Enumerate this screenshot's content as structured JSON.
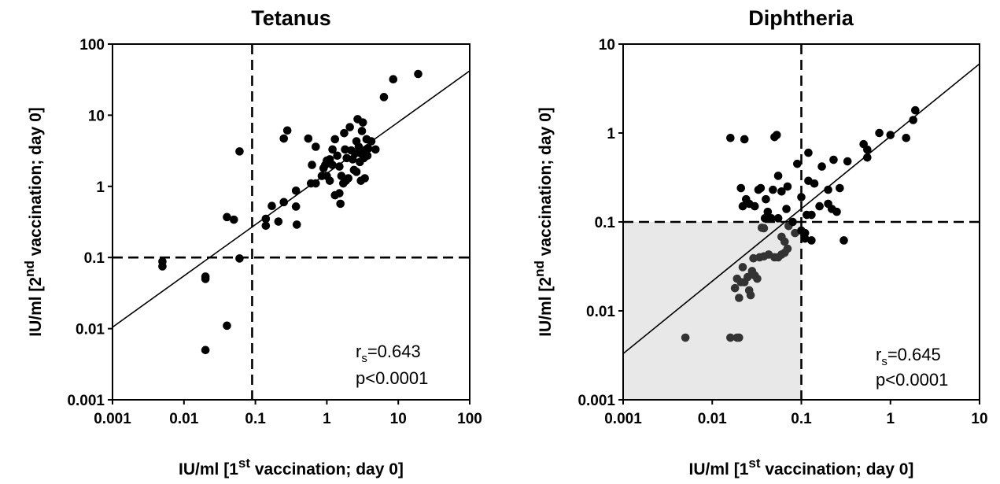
{
  "chart_data": [
    {
      "type": "scatter",
      "title": "Tetanus",
      "xlabel": {
        "prefix": "IU/ml [1",
        "sup": "st",
        "suffix": " vaccination; day 0]"
      },
      "ylabel": {
        "prefix": "IU/ml [2",
        "sup": "nd",
        "suffix": " vaccination; day 0]"
      },
      "x_scale": "log",
      "y_scale": "log",
      "xlim": [
        0.001,
        100
      ],
      "ylim": [
        0.001,
        100
      ],
      "x_ticks": [
        "0.001",
        "0.01",
        "0.1",
        "1",
        "10",
        "100"
      ],
      "y_ticks": [
        "0.001",
        "0.01",
        "0.1",
        "1",
        "10",
        "100"
      ],
      "threshold_x": 0.09,
      "threshold_y": 0.1,
      "shaded_region": null,
      "regression_line": {
        "x": [
          0.001,
          100
        ],
        "y": [
          0.0105,
          42
        ]
      },
      "stats": {
        "r_prefix": "r",
        "r_sub": "s",
        "r_value": "=0.643",
        "p": "p<0.0001"
      },
      "points": [
        [
          0.005,
          0.088
        ],
        [
          0.005,
          0.075
        ],
        [
          0.02,
          0.054
        ],
        [
          0.02,
          0.05
        ],
        [
          0.02,
          0.005
        ],
        [
          0.04,
          0.011
        ],
        [
          0.04,
          0.37
        ],
        [
          0.05,
          0.34
        ],
        [
          0.06,
          3.1
        ],
        [
          0.06,
          0.097
        ],
        [
          0.14,
          0.35
        ],
        [
          0.14,
          0.28
        ],
        [
          0.17,
          0.53
        ],
        [
          0.21,
          0.32
        ],
        [
          0.25,
          4.7
        ],
        [
          0.25,
          0.6
        ],
        [
          0.28,
          6.1
        ],
        [
          0.37,
          0.52
        ],
        [
          0.37,
          0.87
        ],
        [
          0.38,
          0.29
        ],
        [
          0.55,
          4.7
        ],
        [
          0.6,
          1.1
        ],
        [
          0.62,
          2.0
        ],
        [
          0.7,
          3.6
        ],
        [
          0.7,
          1.1
        ],
        [
          0.85,
          1.4
        ],
        [
          0.9,
          1.8
        ],
        [
          0.95,
          2.0
        ],
        [
          1.0,
          1.4
        ],
        [
          1.0,
          2.3
        ],
        [
          1.1,
          1.2
        ],
        [
          1.1,
          2.4
        ],
        [
          1.2,
          2.0
        ],
        [
          1.2,
          3.3
        ],
        [
          1.3,
          4.6
        ],
        [
          1.3,
          0.75
        ],
        [
          1.4,
          2.7
        ],
        [
          1.5,
          1.9
        ],
        [
          1.5,
          0.8
        ],
        [
          1.55,
          0.57
        ],
        [
          1.6,
          1.4
        ],
        [
          1.7,
          1.1
        ],
        [
          1.75,
          5.6
        ],
        [
          1.8,
          3.3
        ],
        [
          1.85,
          1.2
        ],
        [
          1.9,
          2.5
        ],
        [
          2.0,
          1.3
        ],
        [
          2.1,
          6.8
        ],
        [
          2.2,
          3.2
        ],
        [
          2.3,
          2.4
        ],
        [
          2.4,
          1.7
        ],
        [
          2.5,
          2.9
        ],
        [
          2.6,
          4.3
        ],
        [
          2.6,
          1.6
        ],
        [
          2.7,
          8.8
        ],
        [
          2.8,
          3.6
        ],
        [
          2.9,
          2.2
        ],
        [
          3.0,
          1.2
        ],
        [
          3.0,
          2.9
        ],
        [
          3.1,
          6.0
        ],
        [
          3.2,
          7.9
        ],
        [
          3.3,
          2.5
        ],
        [
          3.4,
          1.3
        ],
        [
          3.5,
          3.2
        ],
        [
          3.6,
          4.6
        ],
        [
          3.7,
          2.7
        ],
        [
          3.8,
          3.4
        ],
        [
          4.2,
          4.3
        ],
        [
          4.8,
          3.3
        ],
        [
          6.3,
          18
        ],
        [
          8.5,
          32
        ],
        [
          19,
          38
        ]
      ]
    },
    {
      "type": "scatter",
      "title": "Diphtheria",
      "xlabel": {
        "prefix": "IU/ml [1",
        "sup": "st",
        "suffix": " vaccination; day 0]"
      },
      "ylabel": {
        "prefix": "IU/ml [2",
        "sup": "nd",
        "suffix": " vaccination; day 0]"
      },
      "x_scale": "log",
      "y_scale": "log",
      "xlim": [
        0.001,
        10
      ],
      "ylim": [
        0.001,
        10
      ],
      "x_ticks": [
        "0.001",
        "0.01",
        "0.1",
        "1",
        "10"
      ],
      "y_ticks": [
        "0.001",
        "0.01",
        "0.1",
        "1",
        "10"
      ],
      "threshold_x": 0.1,
      "threshold_y": 0.1,
      "shaded_region": {
        "x": [
          0.001,
          0.1
        ],
        "y": [
          0.001,
          0.1
        ],
        "color": "#e8e8e8"
      },
      "regression_line": {
        "x": [
          0.001,
          10
        ],
        "y": [
          0.0033,
          6.0
        ]
      },
      "stats": {
        "r_prefix": "r",
        "r_sub": "s",
        "r_value": "=0.645",
        "p": "p<0.0001"
      },
      "points": [
        [
          0.005,
          0.005
        ],
        [
          0.016,
          0.005
        ],
        [
          0.019,
          0.005
        ],
        [
          0.02,
          0.005
        ],
        [
          0.016,
          0.88
        ],
        [
          0.023,
          0.85
        ],
        [
          0.018,
          0.018
        ],
        [
          0.019,
          0.023
        ],
        [
          0.02,
          0.014
        ],
        [
          0.021,
          0.021
        ],
        [
          0.022,
          0.031
        ],
        [
          0.023,
          0.021
        ],
        [
          0.025,
          0.024
        ],
        [
          0.026,
          0.017
        ],
        [
          0.027,
          0.015
        ],
        [
          0.028,
          0.028
        ],
        [
          0.029,
          0.039
        ],
        [
          0.03,
          0.025
        ],
        [
          0.032,
          0.023
        ],
        [
          0.034,
          0.04
        ],
        [
          0.038,
          0.041
        ],
        [
          0.043,
          0.043
        ],
        [
          0.05,
          0.04
        ],
        [
          0.055,
          0.04
        ],
        [
          0.06,
          0.043
        ],
        [
          0.065,
          0.045
        ],
        [
          0.07,
          0.05
        ],
        [
          0.021,
          0.24
        ],
        [
          0.022,
          0.15
        ],
        [
          0.024,
          0.18
        ],
        [
          0.026,
          0.16
        ],
        [
          0.03,
          0.15
        ],
        [
          0.033,
          0.23
        ],
        [
          0.035,
          0.24
        ],
        [
          0.036,
          0.086
        ],
        [
          0.038,
          0.085
        ],
        [
          0.039,
          0.11
        ],
        [
          0.04,
          0.18
        ],
        [
          0.042,
          0.13
        ],
        [
          0.046,
          0.11
        ],
        [
          0.048,
          0.23
        ],
        [
          0.05,
          0.9
        ],
        [
          0.053,
          0.95
        ],
        [
          0.055,
          0.33
        ],
        [
          0.055,
          0.11
        ],
        [
          0.06,
          0.22
        ],
        [
          0.06,
          0.068
        ],
        [
          0.065,
          0.06
        ],
        [
          0.068,
          0.14
        ],
        [
          0.07,
          0.25
        ],
        [
          0.072,
          0.09
        ],
        [
          0.08,
          0.1
        ],
        [
          0.085,
          0.075
        ],
        [
          0.09,
          0.45
        ],
        [
          0.1,
          0.08
        ],
        [
          0.1,
          0.19
        ],
        [
          0.11,
          0.075
        ],
        [
          0.11,
          0.065
        ],
        [
          0.115,
          0.12
        ],
        [
          0.12,
          0.6
        ],
        [
          0.12,
          0.29
        ],
        [
          0.13,
          0.12
        ],
        [
          0.13,
          0.062
        ],
        [
          0.14,
          0.27
        ],
        [
          0.16,
          0.15
        ],
        [
          0.17,
          0.42
        ],
        [
          0.2,
          0.23
        ],
        [
          0.2,
          0.16
        ],
        [
          0.22,
          0.14
        ],
        [
          0.23,
          0.5
        ],
        [
          0.25,
          0.13
        ],
        [
          0.27,
          0.24
        ],
        [
          0.3,
          0.062
        ],
        [
          0.33,
          0.48
        ],
        [
          0.5,
          0.75
        ],
        [
          0.55,
          0.65
        ],
        [
          0.55,
          0.53
        ],
        [
          0.75,
          1.0
        ],
        [
          1.0,
          0.95
        ],
        [
          1.5,
          0.88
        ],
        [
          1.8,
          1.4
        ],
        [
          1.9,
          1.8
        ]
      ]
    }
  ]
}
